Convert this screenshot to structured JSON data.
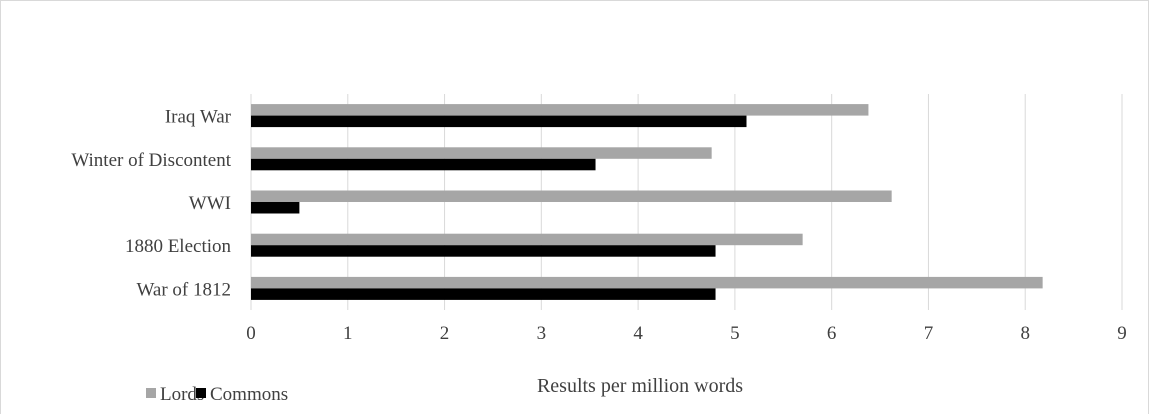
{
  "chart_data": {
    "type": "bar",
    "orientation": "horizontal",
    "categories": [
      "War of 1812",
      "1880 Election",
      "WWI",
      "Winter of Discontent",
      "Iraq War"
    ],
    "series": [
      {
        "name": "Lords",
        "color": "#a6a6a6",
        "values": [
          8.18,
          5.7,
          6.62,
          4.76,
          6.38
        ]
      },
      {
        "name": "Commons",
        "color": "#000000",
        "values": [
          4.8,
          4.8,
          0.5,
          3.56,
          5.12
        ]
      }
    ],
    "xlabel": "Results per million words",
    "ylabel": "",
    "xlim": [
      0,
      9
    ],
    "xticks": [
      0,
      1,
      2,
      3,
      4,
      5,
      6,
      7,
      8,
      9
    ],
    "grid": "vertical",
    "legend": "bottom-left"
  }
}
